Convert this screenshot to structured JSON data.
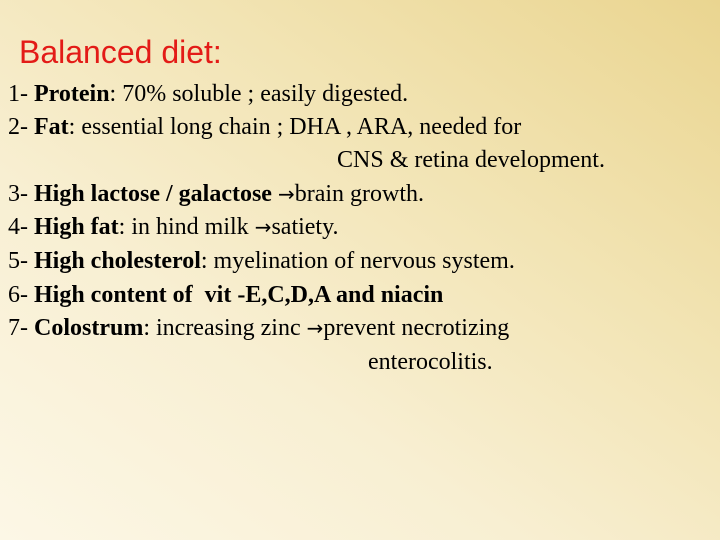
{
  "title": "Balanced diet:",
  "items": [
    {
      "num": "1- ",
      "bold": "Protein",
      "text": ": 70% soluble ; easily digested."
    },
    {
      "num": "2- ",
      "bold": "Fat",
      "text": ": essential long chain ; DHA , ARA, needed for",
      "cont": "CNS & retina development."
    },
    {
      "num": "3- ",
      "bold": "High lactose / galactose ",
      "text": "brain growth."
    },
    {
      "num": "4- ",
      "bold": "High fat",
      "pre": ": in hind milk ",
      "text": "satiety."
    },
    {
      "num": "5- ",
      "bold": "High cholesterol",
      "text": ": myelination of nervous system."
    },
    {
      "num": "6- ",
      "bold": "High content of  vit -E,C,D,A and niacin"
    },
    {
      "num": "7- ",
      "bold": "Colostrum",
      "pre": ": increasing zinc ",
      "text": "prevent necrotizing",
      "cont": "enterocolitis."
    }
  ],
  "arrow_glyph": "→",
  "colors": {
    "title": "#e31b17",
    "text": "#000000"
  }
}
